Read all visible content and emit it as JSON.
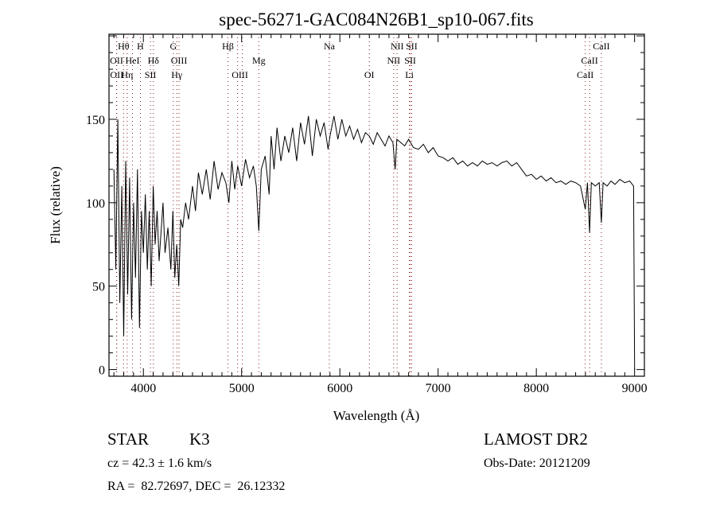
{
  "chart_data": {
    "type": "line",
    "title": "spec-56271-GAC084N26B1_sp10-067.fits",
    "xlabel": "Wavelength (Å)",
    "ylabel": "Flux (relative)",
    "xlim": [
      3650,
      9100
    ],
    "ylim": [
      -4,
      201
    ],
    "x_ticks": [
      4000,
      5000,
      6000,
      7000,
      8000,
      9000
    ],
    "x_tick_labels": [
      "4000",
      "5000",
      "6000",
      "7000",
      "8000",
      "9000"
    ],
    "y_ticks": [
      0,
      50,
      100,
      150
    ],
    "y_tick_labels": [
      "0",
      "50",
      "100",
      "150"
    ],
    "grid": false,
    "series": [
      {
        "name": "flux",
        "points": [
          [
            3700,
            120
          ],
          [
            3720,
            60
          ],
          [
            3740,
            150
          ],
          [
            3760,
            40
          ],
          [
            3780,
            110
          ],
          [
            3800,
            20
          ],
          [
            3820,
            125
          ],
          [
            3840,
            45
          ],
          [
            3860,
            115
          ],
          [
            3880,
            30
          ],
          [
            3900,
            100
          ],
          [
            3920,
            55
          ],
          [
            3940,
            120
          ],
          [
            3960,
            25
          ],
          [
            3980,
            95
          ],
          [
            4000,
            70
          ],
          [
            4020,
            105
          ],
          [
            4040,
            60
          ],
          [
            4060,
            95
          ],
          [
            4080,
            50
          ],
          [
            4100,
            110
          ],
          [
            4120,
            75
          ],
          [
            4140,
            95
          ],
          [
            4160,
            65
          ],
          [
            4200,
            100
          ],
          [
            4220,
            70
          ],
          [
            4250,
            85
          ],
          [
            4280,
            60
          ],
          [
            4300,
            95
          ],
          [
            4320,
            55
          ],
          [
            4340,
            75
          ],
          [
            4360,
            50
          ],
          [
            4380,
            90
          ],
          [
            4400,
            85
          ],
          [
            4430,
            100
          ],
          [
            4460,
            90
          ],
          [
            4500,
            110
          ],
          [
            4530,
            95
          ],
          [
            4560,
            118
          ],
          [
            4600,
            105
          ],
          [
            4640,
            120
          ],
          [
            4680,
            102
          ],
          [
            4720,
            125
          ],
          [
            4760,
            108
          ],
          [
            4800,
            118
          ],
          [
            4840,
            112
          ],
          [
            4870,
            100
          ],
          [
            4900,
            125
          ],
          [
            4930,
            108
          ],
          [
            4960,
            122
          ],
          [
            5000,
            110
          ],
          [
            5040,
            126
          ],
          [
            5080,
            115
          ],
          [
            5120,
            122
          ],
          [
            5150,
            110
          ],
          [
            5175,
            83
          ],
          [
            5200,
            120
          ],
          [
            5240,
            128
          ],
          [
            5280,
            105
          ],
          [
            5300,
            140
          ],
          [
            5330,
            120
          ],
          [
            5360,
            145
          ],
          [
            5400,
            125
          ],
          [
            5440,
            140
          ],
          [
            5480,
            130
          ],
          [
            5520,
            145
          ],
          [
            5560,
            125
          ],
          [
            5600,
            148
          ],
          [
            5640,
            135
          ],
          [
            5680,
            152
          ],
          [
            5720,
            128
          ],
          [
            5760,
            150
          ],
          [
            5800,
            140
          ],
          [
            5840,
            148
          ],
          [
            5880,
            132
          ],
          [
            5900,
            140
          ],
          [
            5940,
            152
          ],
          [
            5980,
            138
          ],
          [
            6020,
            150
          ],
          [
            6060,
            140
          ],
          [
            6100,
            146
          ],
          [
            6140,
            138
          ],
          [
            6180,
            144
          ],
          [
            6220,
            136
          ],
          [
            6260,
            142
          ],
          [
            6300,
            140
          ],
          [
            6340,
            135
          ],
          [
            6380,
            142
          ],
          [
            6420,
            138
          ],
          [
            6460,
            134
          ],
          [
            6500,
            140
          ],
          [
            6540,
            136
          ],
          [
            6563,
            120
          ],
          [
            6580,
            138
          ],
          [
            6620,
            136
          ],
          [
            6660,
            134
          ],
          [
            6700,
            138
          ],
          [
            6750,
            133
          ],
          [
            6800,
            132
          ],
          [
            6850,
            135
          ],
          [
            6900,
            130
          ],
          [
            6950,
            133
          ],
          [
            7000,
            128
          ],
          [
            7050,
            127
          ],
          [
            7100,
            125
          ],
          [
            7150,
            127
          ],
          [
            7200,
            123
          ],
          [
            7250,
            125
          ],
          [
            7300,
            122
          ],
          [
            7350,
            124
          ],
          [
            7400,
            122
          ],
          [
            7450,
            125
          ],
          [
            7500,
            123
          ],
          [
            7550,
            124
          ],
          [
            7600,
            122
          ],
          [
            7650,
            124
          ],
          [
            7700,
            125
          ],
          [
            7750,
            122
          ],
          [
            7800,
            124
          ],
          [
            7850,
            120
          ],
          [
            7900,
            116
          ],
          [
            7950,
            117
          ],
          [
            8000,
            114
          ],
          [
            8050,
            116
          ],
          [
            8100,
            113
          ],
          [
            8150,
            115
          ],
          [
            8200,
            112
          ],
          [
            8250,
            113
          ],
          [
            8300,
            111
          ],
          [
            8350,
            113
          ],
          [
            8400,
            112
          ],
          [
            8450,
            110
          ],
          [
            8498,
            96
          ],
          [
            8520,
            112
          ],
          [
            8542,
            82
          ],
          [
            8560,
            112
          ],
          [
            8600,
            110
          ],
          [
            8640,
            112
          ],
          [
            8662,
            88
          ],
          [
            8680,
            112
          ],
          [
            8720,
            110
          ],
          [
            8760,
            113
          ],
          [
            8800,
            111
          ],
          [
            8850,
            114
          ],
          [
            8900,
            112
          ],
          [
            8950,
            113
          ],
          [
            8990,
            110
          ],
          [
            9000,
            0
          ]
        ]
      }
    ],
    "lines": [
      {
        "label": "Hθ",
        "wavelengths": [
          3798
        ],
        "row": 1
      },
      {
        "label": "H",
        "wavelengths": [
          3970
        ],
        "row": 1
      },
      {
        "label": "G",
        "wavelengths": [
          4305
        ],
        "row": 1
      },
      {
        "label": "Hβ",
        "wavelengths": [
          4861
        ],
        "row": 1
      },
      {
        "label": "Na",
        "wavelengths": [
          5893
        ],
        "row": 1
      },
      {
        "label": "NII",
        "wavelengths": [
          6583
        ],
        "row": 1
      },
      {
        "label": "SII",
        "wavelengths": [
          6731
        ],
        "row": 1
      },
      {
        "label": "CaII",
        "wavelengths": [
          8662
        ],
        "row": 1
      },
      {
        "label": "OII",
        "wavelengths": [
          3727
        ],
        "row": 2
      },
      {
        "label": "HeI",
        "wavelengths": [
          3889
        ],
        "row": 2
      },
      {
        "label": "Hδ",
        "wavelengths": [
          4102
        ],
        "row": 2
      },
      {
        "label": "OIII",
        "wavelengths": [
          4363
        ],
        "row": 2
      },
      {
        "label": "Mg",
        "wavelengths": [
          5175
        ],
        "row": 2
      },
      {
        "label": "NII",
        "wavelengths": [
          6548
        ],
        "row": 2
      },
      {
        "label": "SII",
        "wavelengths": [
          6716
        ],
        "row": 2
      },
      {
        "label": "CaII",
        "wavelengths": [
          8542
        ],
        "row": 2
      },
      {
        "label": "OII",
        "wavelengths": [
          3729
        ],
        "row": 3
      },
      {
        "label": "Hη",
        "wavelengths": [
          3835
        ],
        "row": 3
      },
      {
        "label": "SII",
        "wavelengths": [
          4072
        ],
        "row": 3
      },
      {
        "label": "Hγ",
        "wavelengths": [
          4340
        ],
        "row": 3
      },
      {
        "label": "OIII",
        "wavelengths": [
          4959,
          5007
        ],
        "row": 3
      },
      {
        "label": "OI",
        "wavelengths": [
          6300
        ],
        "row": 3
      },
      {
        "label": "Li",
        "wavelengths": [
          6708
        ],
        "row": 3
      },
      {
        "label": "CaII",
        "wavelengths": [
          8498
        ],
        "row": 3
      }
    ],
    "colors": {
      "spectrum": "#000000",
      "line_marker": "#8b1a1a",
      "axes": "#000000"
    }
  },
  "info": {
    "object": "STAR",
    "subclass": "K3",
    "redshift": "cz = 42.3 ± 1.6 km/s",
    "coords": "RA =  82.72697, DEC =  26.12332",
    "survey": "LAMOST DR2",
    "obs_date": "Obs-Date: 20121209"
  }
}
